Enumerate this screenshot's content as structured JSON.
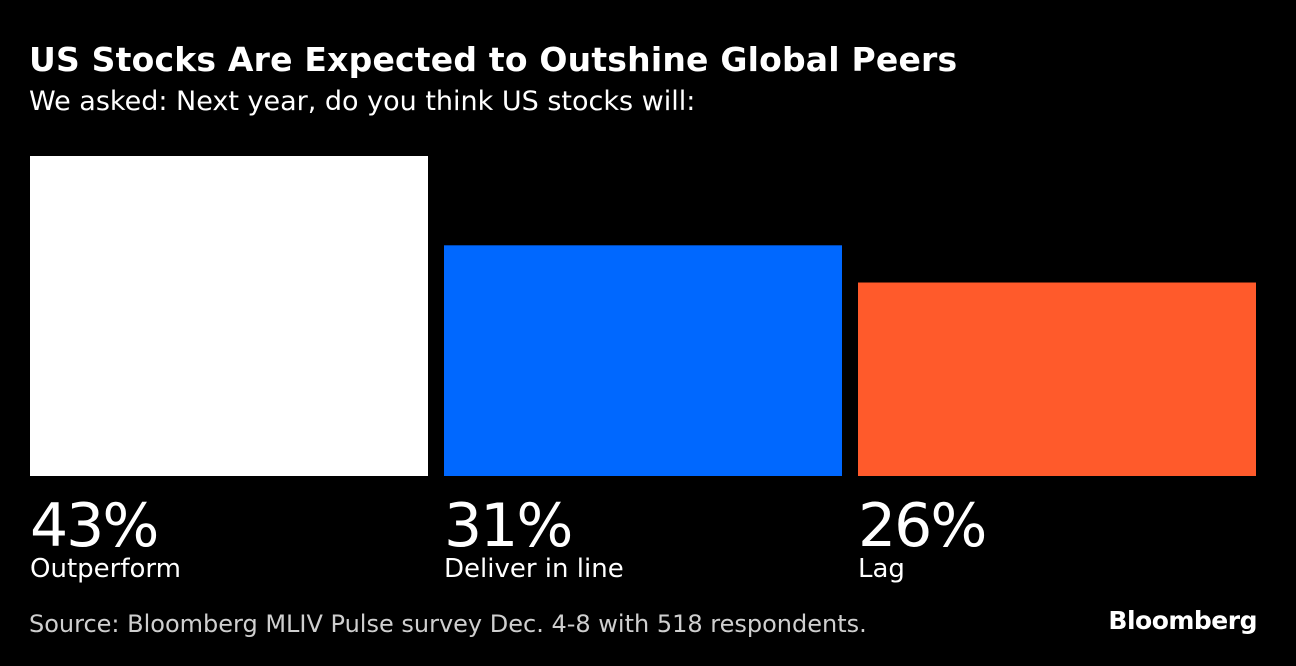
{
  "title": "US Stocks Are Expected to Outshine Global Peers",
  "subtitle": "We asked: Next year, do you think US stocks will:",
  "source": "Source: Bloomberg MLIV Pulse survey Dec. 4-8 with 518 respondents.",
  "brand": "Bloomberg",
  "chart_data": {
    "type": "bar",
    "categories": [
      "Outperform",
      "Deliver in line",
      "Lag"
    ],
    "values": [
      43,
      31,
      26
    ],
    "value_labels": [
      "43%",
      "31%",
      "26%"
    ],
    "unit": "%",
    "colors": [
      "#ffffff",
      "#0068ff",
      "#ff5a2b"
    ],
    "ylim": [
      0,
      43
    ],
    "grid": false,
    "legend": "none"
  }
}
